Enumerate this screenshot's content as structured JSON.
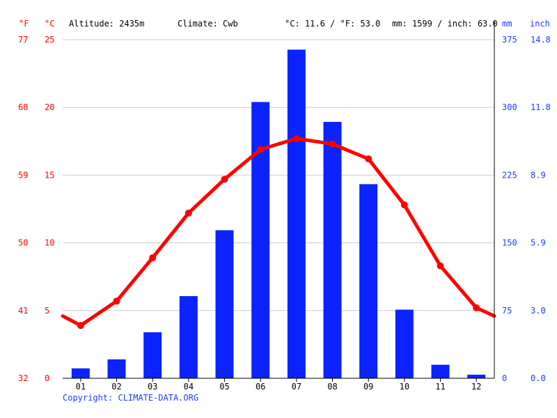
{
  "header": {
    "unit_f": "°F",
    "unit_c": "°C",
    "altitude": "Altitude: 2435m",
    "climate": "Climate: Cwb",
    "avg_temp": "°C: 11.6 / °F: 53.0",
    "avg_precip": "mm: 1599 / inch: 63.0",
    "unit_mm": "mm",
    "unit_inch": "inch"
  },
  "footer": {
    "copyright": "Copyright: CLIMATE-DATA.ORG"
  },
  "colors": {
    "temperature": "#ff0000",
    "precipitation": "#0a23ff",
    "axis_text_blue": "#1f3bff",
    "grid": "#cccccc"
  },
  "chart_data": {
    "type": "bar",
    "categories": [
      "01",
      "02",
      "03",
      "04",
      "05",
      "06",
      "07",
      "08",
      "09",
      "10",
      "11",
      "12"
    ],
    "series": [
      {
        "type": "bar",
        "axis": "right",
        "unit": "mm",
        "values": [
          11,
          21,
          51,
          91,
          164,
          306,
          364,
          284,
          215,
          76,
          15,
          4
        ]
      },
      {
        "type": "line",
        "axis": "left",
        "unit": "°C",
        "values": [
          3.9,
          5.7,
          8.9,
          12.2,
          14.7,
          16.9,
          17.7,
          17.3,
          16.2,
          12.8,
          8.3,
          5.2
        ],
        "edge_values": [
          4.6,
          4.6
        ]
      }
    ],
    "y_left_c": {
      "ticks": [
        "0",
        "5",
        "10",
        "15",
        "20",
        "25"
      ],
      "ylim": [
        0,
        25
      ]
    },
    "y_left_f": {
      "ticks": [
        "32",
        "41",
        "50",
        "59",
        "68",
        "77"
      ]
    },
    "y_right_mm": {
      "ticks": [
        "0",
        "75",
        "150",
        "225",
        "300",
        "375"
      ],
      "ylim": [
        0,
        375
      ]
    },
    "y_right_inch": {
      "ticks": [
        "0.0",
        "3.0",
        "5.9",
        "8.9",
        "11.8",
        "14.8"
      ]
    },
    "grid": true,
    "legend": "none"
  }
}
